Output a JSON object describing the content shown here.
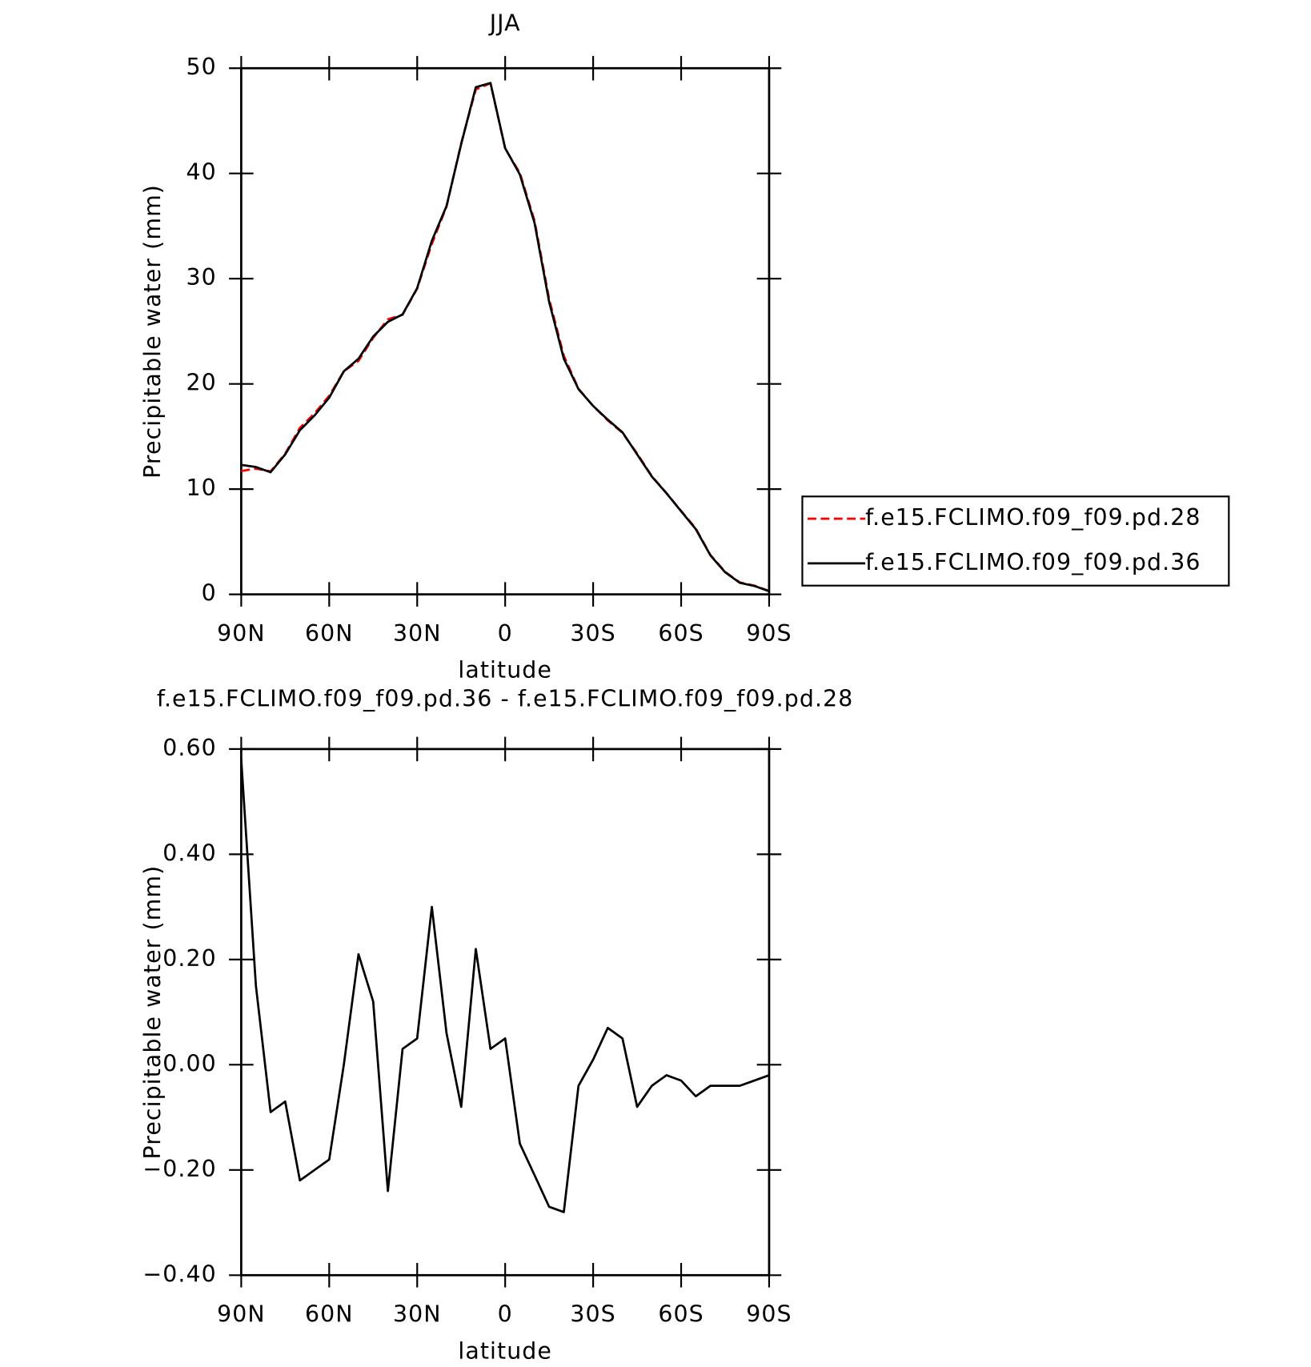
{
  "chart_data": [
    {
      "type": "line",
      "title": "JJA",
      "x_label": "latitude",
      "y_label": "Precipitable water (mm)",
      "x": [
        90,
        85,
        80,
        75,
        70,
        65,
        60,
        55,
        50,
        45,
        40,
        35,
        30,
        25,
        20,
        15,
        10,
        5,
        0,
        -5,
        -10,
        -15,
        -20,
        -25,
        -30,
        -35,
        -40,
        -45,
        -50,
        -55,
        -60,
        -65,
        -70,
        -75,
        -80,
        -85,
        -90
      ],
      "xlim": [
        90,
        -90
      ],
      "xticks": [
        {
          "value": 90,
          "label": "90N"
        },
        {
          "value": 60,
          "label": "60N"
        },
        {
          "value": 30,
          "label": "30N"
        },
        0,
        {
          "value": -30,
          "label": "30S"
        },
        {
          "value": -60,
          "label": "60S"
        },
        {
          "value": -90,
          "label": "90S"
        }
      ],
      "ylim": [
        0,
        50
      ],
      "yticks": [
        0,
        10,
        20,
        30,
        40,
        50
      ],
      "legend": "right",
      "series": [
        {
          "name": "f.e15.FCLIMO.f09_f09.pd.28",
          "color": "#ff0000",
          "dash": true,
          "values": [
            11.72,
            11.95,
            11.69,
            13.37,
            15.82,
            17.2,
            18.88,
            21.2,
            22.19,
            24.38,
            26.14,
            26.57,
            29.05,
            33.3,
            36.84,
            42.88,
            47.98,
            48.57,
            42.35,
            40.05,
            35.51,
            28.07,
            22.68,
            19.54,
            17.89,
            16.53,
            15.35,
            13.38,
            11.24,
            9.62,
            7.93,
            6.26,
            3.74,
            2.14,
            1.14,
            0.83,
            0.32
          ]
        },
        {
          "name": "f.e15.FCLIMO.f09_f09.pd.36",
          "color": "#000000",
          "dash": false,
          "values": [
            12.3,
            12.1,
            11.6,
            13.3,
            15.6,
            17.0,
            18.7,
            21.2,
            22.4,
            24.5,
            25.9,
            26.6,
            29.1,
            33.6,
            36.9,
            42.8,
            48.2,
            48.6,
            42.4,
            39.9,
            35.3,
            27.8,
            22.4,
            19.5,
            17.9,
            16.6,
            15.4,
            13.3,
            11.2,
            9.6,
            7.9,
            6.2,
            3.7,
            2.1,
            1.1,
            0.8,
            0.3
          ]
        }
      ]
    },
    {
      "type": "line",
      "title": "f.e15.FCLIMO.f09_f09.pd.36 - f.e15.FCLIMO.f09_f09.pd.28",
      "x_label": "latitude",
      "y_label": "Precipitable water (mm)",
      "x": [
        90,
        85,
        80,
        75,
        70,
        65,
        60,
        55,
        50,
        45,
        40,
        35,
        30,
        25,
        20,
        15,
        10,
        5,
        0,
        -5,
        -10,
        -15,
        -20,
        -25,
        -30,
        -35,
        -40,
        -45,
        -50,
        -55,
        -60,
        -65,
        -70,
        -75,
        -80,
        -85,
        -90
      ],
      "xlim": [
        90,
        -90
      ],
      "xticks": [
        {
          "value": 90,
          "label": "90N"
        },
        {
          "value": 60,
          "label": "60N"
        },
        {
          "value": 30,
          "label": "30N"
        },
        0,
        {
          "value": -30,
          "label": "30S"
        },
        {
          "value": -60,
          "label": "60S"
        },
        {
          "value": -90,
          "label": "90S"
        }
      ],
      "ylim": [
        -0.4,
        0.6
      ],
      "yticks": [
        {
          "value": -0.4,
          "label": "−0.40"
        },
        {
          "value": -0.2,
          "label": "−0.20"
        },
        {
          "value": 0,
          "label": "0.00"
        },
        {
          "value": 0.2,
          "label": "0.20"
        },
        {
          "value": 0.4,
          "label": "0.40"
        },
        {
          "value": 0.6,
          "label": "0.60"
        }
      ],
      "series": [
        {
          "color": "#000000",
          "dash": false,
          "values": [
            0.58,
            0.15,
            -0.09,
            -0.07,
            -0.22,
            -0.2,
            -0.18,
            0.0,
            0.21,
            0.12,
            -0.24,
            0.03,
            0.05,
            0.3,
            0.06,
            -0.08,
            0.22,
            0.03,
            0.05,
            -0.15,
            -0.21,
            -0.27,
            -0.28,
            -0.04,
            0.01,
            0.07,
            0.05,
            -0.08,
            -0.04,
            -0.02,
            -0.03,
            -0.06,
            -0.04,
            -0.04,
            -0.04,
            -0.03,
            -0.02
          ]
        }
      ]
    }
  ]
}
